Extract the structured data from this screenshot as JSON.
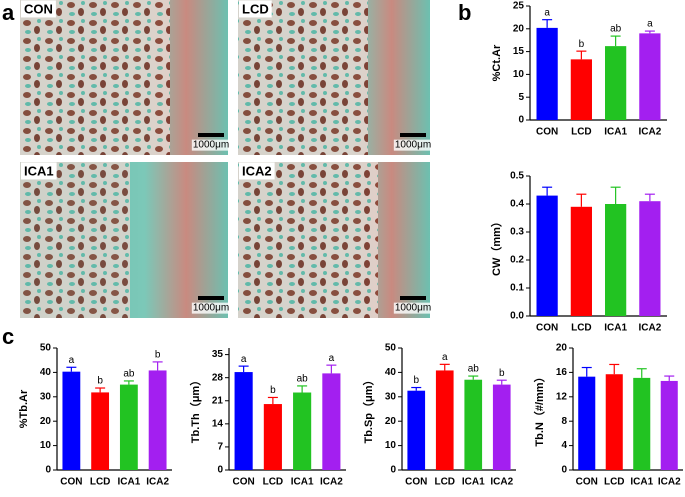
{
  "panels": [
    "a",
    "b",
    "c"
  ],
  "images": [
    {
      "label": "CON",
      "scale": "1000μm"
    },
    {
      "label": "LCD",
      "scale": "1000μm"
    },
    {
      "label": "ICA1",
      "scale": "1000μm"
    },
    {
      "label": "ICA2",
      "scale": "1000μm"
    }
  ],
  "chart_data": [
    {
      "type": "bar",
      "ylabel": "%Ct.Ar",
      "categories": [
        "CON",
        "LCD",
        "ICA1",
        "ICA2"
      ],
      "values": [
        20.2,
        13.3,
        16.2,
        19.0
      ],
      "errors": [
        1.8,
        1.8,
        2.2,
        0.5
      ],
      "annotations": [
        "a",
        "b",
        "ab",
        "a"
      ],
      "colors": [
        "#0000ff",
        "#ff0000",
        "#22c322",
        "#a31ff0"
      ],
      "ylim": [
        0,
        25
      ],
      "yticks": [
        0,
        5,
        10,
        15,
        20,
        25
      ]
    },
    {
      "type": "bar",
      "ylabel": "CW（mm）",
      "categories": [
        "CON",
        "LCD",
        "ICA1",
        "ICA2"
      ],
      "values": [
        0.43,
        0.39,
        0.4,
        0.41
      ],
      "errors": [
        0.03,
        0.045,
        0.06,
        0.025
      ],
      "colors": [
        "#0000ff",
        "#ff0000",
        "#22c322",
        "#a31ff0"
      ],
      "ylim": [
        0,
        0.5
      ],
      "yticks": [
        {
          "value": 0,
          "label": "0.0"
        },
        0.1,
        0.2,
        0.3,
        0.4,
        0.5
      ]
    },
    {
      "type": "bar",
      "ylabel": "%Tb.Ar",
      "categories": [
        "CON",
        "LCD",
        "ICA1",
        "ICA2"
      ],
      "values": [
        40.3,
        31.8,
        35.0,
        40.8
      ],
      "errors": [
        1.8,
        1.8,
        1.5,
        3.5
      ],
      "annotations": [
        "a",
        "b",
        "ab",
        "b"
      ],
      "colors": [
        "#0000ff",
        "#ff0000",
        "#22c322",
        "#a31ff0"
      ],
      "ylim": [
        0,
        50
      ],
      "yticks": [
        0,
        10,
        20,
        30,
        40,
        50
      ]
    },
    {
      "type": "bar",
      "ylabel": "Tb.Th（μm）",
      "categories": [
        "CON",
        "LCD",
        "ICA1",
        "ICA2"
      ],
      "values": [
        29.7,
        20.0,
        23.5,
        29.3
      ],
      "errors": [
        1.8,
        2.0,
        2.0,
        2.5
      ],
      "annotations": [
        "a",
        "b",
        "ab",
        "a"
      ],
      "colors": [
        "#0000ff",
        "#ff0000",
        "#22c322",
        "#a31ff0"
      ],
      "ylim": [
        0,
        37
      ],
      "yticks": [
        0,
        7,
        14,
        21,
        28,
        35
      ]
    },
    {
      "type": "bar",
      "ylabel": "Tb.Sp（μm）",
      "categories": [
        "CON",
        "LCD",
        "ICA1",
        "ICA2"
      ],
      "values": [
        32.5,
        40.8,
        37.0,
        35.0
      ],
      "errors": [
        1.3,
        2.5,
        1.5,
        1.8
      ],
      "annotations": [
        "b",
        "a",
        "ab",
        "b"
      ],
      "colors": [
        "#0000ff",
        "#ff0000",
        "#22c322",
        "#a31ff0"
      ],
      "ylim": [
        0,
        50
      ],
      "yticks": [
        0,
        10,
        20,
        30,
        40,
        50
      ]
    },
    {
      "type": "bar",
      "ylabel": "Tb.N（#/mm）",
      "categories": [
        "CON",
        "LCD",
        "ICA1",
        "ICA2"
      ],
      "values": [
        15.3,
        15.7,
        15.1,
        14.6
      ],
      "errors": [
        1.5,
        1.6,
        1.5,
        0.8
      ],
      "colors": [
        "#0000ff",
        "#ff0000",
        "#22c322",
        "#a31ff0"
      ],
      "ylim": [
        0,
        20
      ],
      "yticks": [
        0,
        4,
        8,
        12,
        16,
        20
      ]
    }
  ]
}
